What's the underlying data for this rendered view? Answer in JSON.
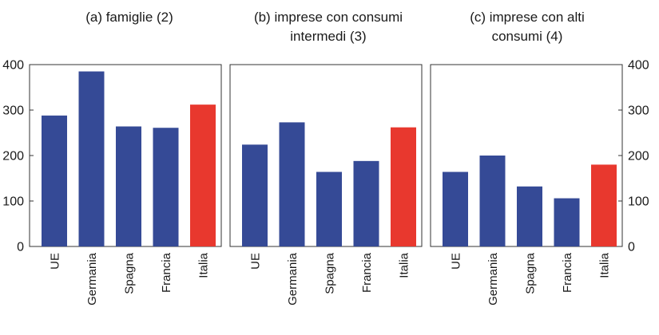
{
  "colors": {
    "default_bar": "#354A96",
    "highlight_bar": "#E8382E"
  },
  "chart_data": [
    {
      "type": "bar",
      "title": "(a) famiglie (2)",
      "categories": [
        "UE",
        "Germania",
        "Spagna",
        "Francia",
        "Italia"
      ],
      "values": [
        288,
        385,
        264,
        261,
        312
      ],
      "highlight": "Italia",
      "ylim": [
        0,
        400
      ],
      "yticks": [
        "0",
        "100",
        "200",
        "300",
        "400"
      ],
      "yaxis_side": "left"
    },
    {
      "type": "bar",
      "title": "(b) imprese con consumi intermedi (3)",
      "categories": [
        "UE",
        "Germania",
        "Spagna",
        "Francia",
        "Italia"
      ],
      "values": [
        224,
        273,
        164,
        188,
        262
      ],
      "highlight": "Italia",
      "ylim": [
        0,
        400
      ],
      "yticks": [],
      "yaxis_side": "none"
    },
    {
      "type": "bar",
      "title": "(c) imprese con alti consumi (4)",
      "categories": [
        "UE",
        "Germania",
        "Spagna",
        "Francia",
        "Italia"
      ],
      "values": [
        164,
        200,
        132,
        106,
        180
      ],
      "highlight": "Italia",
      "ylim": [
        0,
        400
      ],
      "yticks": [
        "0",
        "100",
        "200",
        "300",
        "400"
      ],
      "yaxis_side": "right"
    }
  ]
}
